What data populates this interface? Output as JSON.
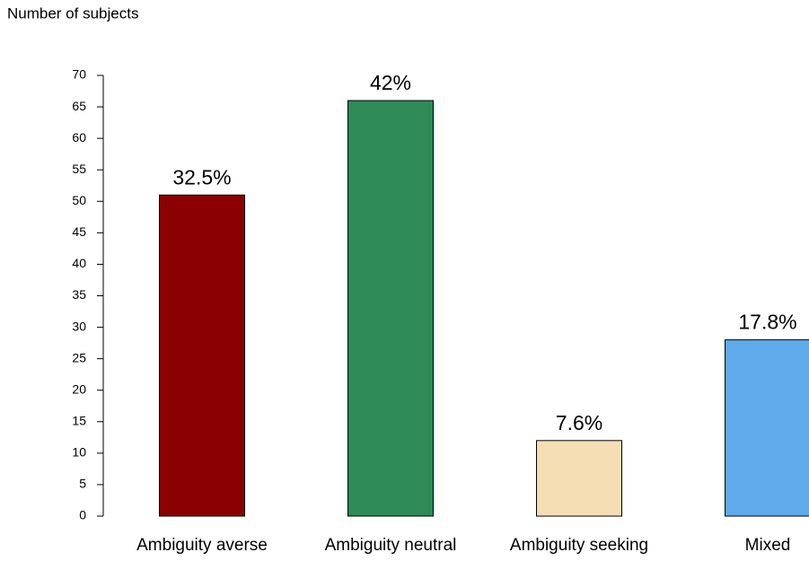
{
  "chart_data": {
    "type": "bar",
    "y_label": "Number of subjects",
    "categories": [
      "Ambiguity averse",
      "Ambiguity neutral",
      "Ambiguity seeking",
      "Mixed"
    ],
    "values": [
      51,
      66,
      12,
      28
    ],
    "annotations": [
      "32.5%",
      "42%",
      "7.6%",
      "17.8%"
    ],
    "colors": [
      "#8b0000",
      "#2e8b57",
      "#f5deb3",
      "#5eaaea"
    ],
    "ylim": [
      0,
      70
    ],
    "yticks": [
      0,
      5,
      10,
      15,
      20,
      25,
      30,
      35,
      40,
      45,
      50,
      55,
      60,
      65,
      70
    ],
    "grid": false
  }
}
